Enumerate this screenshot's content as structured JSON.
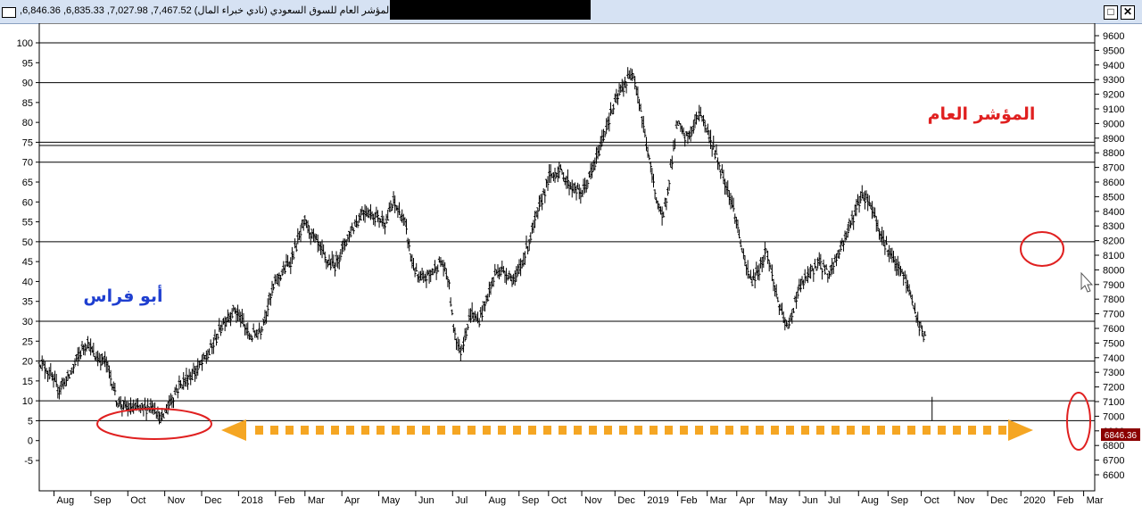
{
  "window": {
    "title": "المؤشر العام للسوق السعودي (نادي خبراء المال) 7,467.52, 7,027.98, 6,835.33, 6,846.36,",
    "restore_glyph": "□",
    "close_glyph": "✕"
  },
  "colors": {
    "price": "#000000",
    "annotation_red": "#e02020",
    "annotation_blue": "#1f3fd0",
    "arrow": "#f5a623",
    "last_price_bg": "#8b0000"
  },
  "chart_data": {
    "type": "bar",
    "series_style": "ohlc",
    "left_axis": {
      "min": -5,
      "max": 100,
      "ticks": [
        100,
        95,
        90,
        85,
        80,
        75,
        70,
        65,
        60,
        55,
        50,
        45,
        40,
        35,
        30,
        25,
        20,
        15,
        10,
        5,
        0,
        -5
      ]
    },
    "right_axis": {
      "min": 6600,
      "max": 9600,
      "ticks": [
        9600,
        9500,
        9400,
        9300,
        9200,
        9100,
        9000,
        8900,
        8800,
        8700,
        8600,
        8500,
        8400,
        8300,
        8200,
        8100,
        8000,
        7900,
        7800,
        7700,
        7600,
        7500,
        7400,
        7300,
        7200,
        7100,
        7000,
        6900,
        6800,
        6700,
        6600
      ]
    },
    "grid_lines_left_axis": [
      100,
      90,
      75,
      70,
      50,
      30,
      20,
      10,
      5
    ],
    "grid_lines_right_axis": [
      8850
    ],
    "x_labels": [
      {
        "label": "Aug",
        "t": 0.02
      },
      {
        "label": "Sep",
        "t": 0.07
      },
      {
        "label": "Oct",
        "t": 0.12
      },
      {
        "label": "Nov",
        "t": 0.17
      },
      {
        "label": "Dec",
        "t": 0.22
      },
      {
        "label": "2018",
        "t": 0.27
      },
      {
        "label": "Feb",
        "t": 0.32
      },
      {
        "label": "Mar",
        "t": 0.36
      },
      {
        "label": "Apr",
        "t": 0.41
      },
      {
        "label": "May",
        "t": 0.46
      },
      {
        "label": "Jun",
        "t": 0.51
      },
      {
        "label": "Jul",
        "t": 0.56
      },
      {
        "label": "Aug",
        "t": 0.605
      },
      {
        "label": "Sep",
        "t": 0.65
      },
      {
        "label": "Oct",
        "t": 0.69
      },
      {
        "label": "Nov",
        "t": 0.735
      },
      {
        "label": "Dec",
        "t": 0.78
      },
      {
        "label": "2019",
        "t": 0.82
      },
      {
        "label": "Feb",
        "t": 0.865
      },
      {
        "label": "Mar",
        "t": 0.905
      },
      {
        "label": "Apr",
        "t": 0.945
      },
      {
        "label": "May",
        "t": 0.985
      },
      {
        "label": "Jun",
        "t": 1.03
      },
      {
        "label": "Jul",
        "t": 1.065
      },
      {
        "label": "Aug",
        "t": 1.11
      },
      {
        "label": "Sep",
        "t": 1.15
      },
      {
        "label": "Oct",
        "t": 1.195
      },
      {
        "label": "Nov",
        "t": 1.24
      },
      {
        "label": "Dec",
        "t": 1.285
      },
      {
        "label": "2020",
        "t": 1.33
      },
      {
        "label": "Feb",
        "t": 1.375
      },
      {
        "label": "Mar",
        "t": 1.415
      }
    ],
    "x_range": [
      0,
      1.43
    ],
    "path_keypoints": [
      [
        0.0,
        20
      ],
      [
        0.01,
        18
      ],
      [
        0.025,
        13
      ],
      [
        0.04,
        16
      ],
      [
        0.055,
        22
      ],
      [
        0.065,
        25
      ],
      [
        0.075,
        21
      ],
      [
        0.09,
        20
      ],
      [
        0.1,
        14
      ],
      [
        0.105,
        10
      ],
      [
        0.12,
        8
      ],
      [
        0.14,
        8
      ],
      [
        0.155,
        9
      ],
      [
        0.165,
        5
      ],
      [
        0.175,
        9
      ],
      [
        0.19,
        14
      ],
      [
        0.21,
        17
      ],
      [
        0.23,
        22
      ],
      [
        0.25,
        30
      ],
      [
        0.265,
        33
      ],
      [
        0.275,
        30
      ],
      [
        0.285,
        26
      ],
      [
        0.3,
        28
      ],
      [
        0.32,
        40
      ],
      [
        0.34,
        45
      ],
      [
        0.36,
        55
      ],
      [
        0.375,
        50
      ],
      [
        0.39,
        45
      ],
      [
        0.4,
        44
      ],
      [
        0.42,
        52
      ],
      [
        0.44,
        58
      ],
      [
        0.46,
        56
      ],
      [
        0.47,
        55
      ],
      [
        0.48,
        60
      ],
      [
        0.495,
        55
      ],
      [
        0.505,
        45
      ],
      [
        0.515,
        40
      ],
      [
        0.53,
        42
      ],
      [
        0.545,
        45
      ],
      [
        0.555,
        40
      ],
      [
        0.56,
        30
      ],
      [
        0.57,
        22
      ],
      [
        0.585,
        32
      ],
      [
        0.595,
        30
      ],
      [
        0.605,
        35
      ],
      [
        0.62,
        43
      ],
      [
        0.635,
        42
      ],
      [
        0.645,
        40
      ],
      [
        0.66,
        48
      ],
      [
        0.675,
        57
      ],
      [
        0.69,
        66
      ],
      [
        0.705,
        68
      ],
      [
        0.72,
        64
      ],
      [
        0.735,
        62
      ],
      [
        0.75,
        68
      ],
      [
        0.77,
        80
      ],
      [
        0.785,
        87
      ],
      [
        0.795,
        90
      ],
      [
        0.805,
        93
      ],
      [
        0.815,
        83
      ],
      [
        0.825,
        72
      ],
      [
        0.835,
        62
      ],
      [
        0.845,
        55
      ],
      [
        0.855,
        68
      ],
      [
        0.865,
        80
      ],
      [
        0.875,
        76
      ],
      [
        0.885,
        78
      ],
      [
        0.895,
        83
      ],
      [
        0.905,
        78
      ],
      [
        0.92,
        70
      ],
      [
        0.935,
        62
      ],
      [
        0.945,
        55
      ],
      [
        0.955,
        45
      ],
      [
        0.965,
        40
      ],
      [
        0.975,
        43
      ],
      [
        0.985,
        48
      ],
      [
        0.995,
        40
      ],
      [
        1.005,
        32
      ],
      [
        1.015,
        28
      ],
      [
        1.025,
        36
      ],
      [
        1.035,
        40
      ],
      [
        1.045,
        42
      ],
      [
        1.055,
        45
      ],
      [
        1.07,
        42
      ],
      [
        1.085,
        48
      ],
      [
        1.1,
        55
      ],
      [
        1.115,
        62
      ],
      [
        1.125,
        60
      ],
      [
        1.135,
        55
      ],
      [
        1.14,
        52
      ],
      [
        1.15,
        48
      ],
      [
        1.16,
        44
      ],
      [
        1.17,
        42
      ],
      [
        1.18,
        37
      ],
      [
        1.19,
        30
      ],
      [
        1.2,
        26
      ]
    ],
    "last_value_left_axis": 7,
    "last_price_label": "6846.36"
  },
  "annotations": {
    "author": "أبو فراس",
    "index_name": "المؤشر العام"
  }
}
